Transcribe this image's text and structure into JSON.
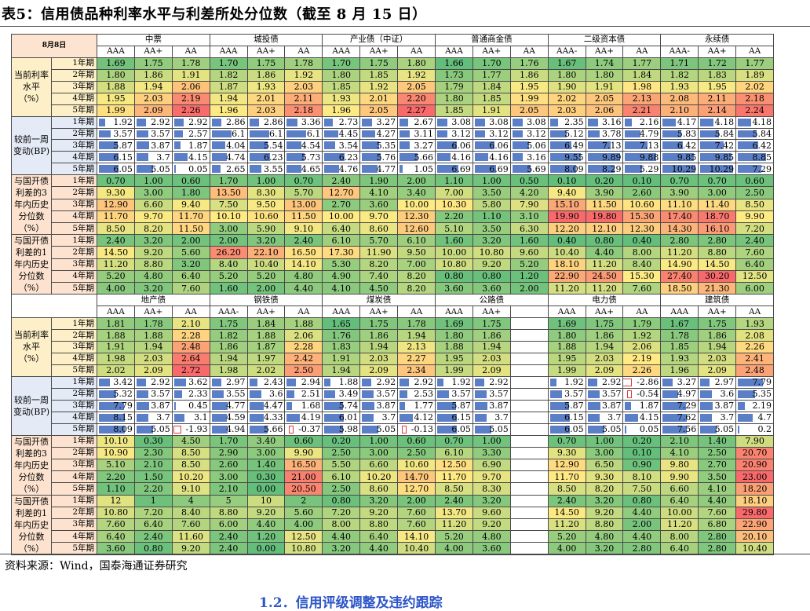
{
  "title": "表5：信用债品种利率水平与利差所处分位数（截至 8 月 15 日）",
  "source": "资料来源：Wind，国泰海通证券研究",
  "next_heading": "1.2．信用评级调整及违约跟踪",
  "corner": "8月8日",
  "tenors": [
    "1年期",
    "2年期",
    "3年期",
    "4年期",
    "5年期"
  ],
  "blocks": [
    {
      "type": "label",
      "lines": [
        "当前利率",
        "水平",
        "（%）"
      ]
    },
    {
      "type": "label",
      "lines": [
        "较前一周",
        "变动(BP)"
      ]
    },
    {
      "type": "label",
      "lines": [
        "与国开债",
        "利差的3",
        "年内历史",
        "分位数",
        "（%）"
      ]
    },
    {
      "type": "label",
      "lines": [
        "与国开债",
        "利差的1",
        "年内历史",
        "分位数",
        "（%）"
      ]
    }
  ],
  "panels": [
    {
      "groups": [
        {
          "name": "中票",
          "cols": [
            "AAA",
            "AA+",
            "AA"
          ]
        },
        {
          "name": "城投债",
          "cols": [
            "AAA",
            "AA+",
            "AA"
          ]
        },
        {
          "name": "产业债（中证）",
          "cols": [
            "AAA",
            "AA+",
            "AA"
          ]
        },
        {
          "name": "普通商金债",
          "cols": [
            "AAA",
            "AA+",
            "AA"
          ]
        },
        {
          "name": "二级资本债",
          "cols": [
            "AAA-",
            "AA+",
            "AA"
          ]
        },
        {
          "name": "永续债",
          "cols": [
            "AAA-",
            "AA+",
            "AA"
          ]
        }
      ],
      "blocks": [
        [
          [
            "1.69",
            "1.75",
            "1.78",
            "1.70",
            "1.75",
            "1.78",
            "1.70",
            "1.75",
            "1.80",
            "1.66",
            "1.70",
            "1.76",
            "1.67",
            "1.74",
            "1.77",
            "1.71",
            "1.72",
            "1.77"
          ],
          [
            "1.80",
            "1.86",
            "1.91",
            "1.82",
            "1.86",
            "1.92",
            "1.80",
            "1.85",
            "1.92",
            "1.73",
            "1.77",
            "1.86",
            "1.80",
            "1.80",
            "1.84",
            "1.82",
            "1.83",
            "1.89"
          ],
          [
            "1.88",
            "1.94",
            "2.06",
            "1.87",
            "1.93",
            "2.03",
            "1.85",
            "1.92",
            "2.05",
            "1.79",
            "1.84",
            "1.95",
            "1.90",
            "1.91",
            "1.98",
            "1.93",
            "1.95",
            "2.02"
          ],
          [
            "1.95",
            "2.03",
            "2.19",
            "1.94",
            "2.01",
            "2.11",
            "1.93",
            "2.01",
            "2.20",
            "1.80",
            "1.85",
            "1.99",
            "2.02",
            "2.05",
            "2.13",
            "2.08",
            "2.11",
            "2.18"
          ],
          [
            "1.99",
            "2.09",
            "2.26",
            "1.96",
            "2.03",
            "2.18",
            "1.96",
            "2.05",
            "2.27",
            "1.85",
            "1.91",
            "2.05",
            "2.03",
            "2.06",
            "2.21",
            "2.10",
            "2.14",
            "2.24"
          ]
        ],
        [
          [
            "1.92",
            "2.92",
            "2.92",
            "2.86",
            "2.86",
            "3.36",
            "2.73",
            "3.27",
            "2.67",
            "3.08",
            "3.08",
            "3.08",
            "2.35",
            "3.16",
            "2.16",
            "4.17",
            "4.18",
            "4.18"
          ],
          [
            "3.57",
            "3.57",
            "2.57",
            "6.1",
            "6.1",
            "6.1",
            "4.45",
            "4.27",
            "3.11",
            "3.12",
            "3.12",
            "3.12",
            "5.12",
            "3.78",
            "4.79",
            "5.83",
            "5.84",
            "5.84"
          ],
          [
            "5.87",
            "3.87",
            "1.87",
            "4.04",
            "5.54",
            "4.54",
            "3.54",
            "5.35",
            "3.27",
            "6.06",
            "6.06",
            "5.06",
            "6.49",
            "7.13",
            "7.13",
            "6.42",
            "7.42",
            "6.42"
          ],
          [
            "6.15",
            "3.7",
            "4.15",
            "4.74",
            "6.23",
            "5.73",
            "6.23",
            "5.76",
            "5.66",
            "4.16",
            "4.16",
            "3.16",
            "9.55",
            "9.89",
            "9.88",
            "9.85",
            "9.85",
            "8.85"
          ],
          [
            "6.05",
            "5.05",
            "0.05",
            "2.65",
            "3.55",
            "4.65",
            "4.76",
            "4.77",
            "1.05",
            "6.69",
            "6.69",
            "5.69",
            "8.09",
            "8.29",
            "5.29",
            "10.29",
            "10.29",
            "7.29"
          ]
        ],
        [
          [
            "0.70",
            "1.00",
            "0.60",
            "1.70",
            "1.00",
            "0.70",
            "2.40",
            "1.90",
            "2.00",
            "1.10",
            "1.00",
            "0.50",
            "0.10",
            "0.20",
            "0.10",
            "0.70",
            "0.70",
            "0.60"
          ],
          [
            "9.30",
            "3.00",
            "1.80",
            "13.50",
            "8.30",
            "5.70",
            "12.70",
            "4.10",
            "3.40",
            "7.00",
            "3.50",
            "4.20",
            "9.40",
            "3.90",
            "2.60",
            "3.90",
            "3.00",
            "2.50"
          ],
          [
            "12.90",
            "6.60",
            "9.40",
            "7.50",
            "9.50",
            "13.00",
            "2.70",
            "3.60",
            "10.00",
            "10.30",
            "5.80",
            "7.90",
            "15.10",
            "11.50",
            "10.60",
            "11.10",
            "11.40",
            "8.50"
          ],
          [
            "11.70",
            "9.70",
            "11.70",
            "10.10",
            "10.60",
            "11.50",
            "10.00",
            "9.70",
            "12.30",
            "2.20",
            "1.10",
            "3.10",
            "19.90",
            "19.80",
            "15.30",
            "17.40",
            "18.70",
            "9.90"
          ],
          [
            "8.50",
            "8.20",
            "11.50",
            "3.00",
            "5.90",
            "9.10",
            "6.40",
            "8.60",
            "12.60",
            "5.10",
            "3.50",
            "6.30",
            "12.20",
            "12.10",
            "12.30",
            "14.30",
            "16.10",
            "7.20"
          ]
        ],
        [
          [
            "2.40",
            "3.20",
            "2.00",
            "2.00",
            "3.20",
            "2.40",
            "6.10",
            "5.70",
            "6.10",
            "1.60",
            "3.20",
            "1.60",
            "0.40",
            "0.80",
            "0.40",
            "2.80",
            "2.80",
            "2.40"
          ],
          [
            "14.50",
            "9.20",
            "5.60",
            "26.20",
            "22.10",
            "16.50",
            "17.30",
            "11.90",
            "9.50",
            "10.00",
            "10.80",
            "9.60",
            "10.40",
            "4.40",
            "8.00",
            "11.20",
            "8.80",
            "7.60"
          ],
          [
            "11.20",
            "8.80",
            "3.20",
            "8.40",
            "10.40",
            "14.10",
            "5.30",
            "8.20",
            "7.00",
            "10.80",
            "9.20",
            "5.20",
            "18.10",
            "11.20",
            "8.40",
            "14.90",
            "14.50",
            "6.40"
          ],
          [
            "5.20",
            "4.80",
            "6.40",
            "5.20",
            "5.20",
            "4.80",
            "4.90",
            "7.40",
            "8.20",
            "0.80",
            "0.80",
            "1.20",
            "22.90",
            "24.50",
            "15.30",
            "27.40",
            "30.20",
            "12.50"
          ],
          [
            "4.00",
            "3.20",
            "7.60",
            "1.60",
            "2.00",
            "4.40",
            "4.10",
            "4.50",
            "8.20",
            "3.60",
            "3.60",
            "2.00",
            "11.20",
            "11.20",
            "7.60",
            "18.50",
            "21.30",
            "6.00"
          ]
        ]
      ]
    },
    {
      "groups": [
        {
          "name": "地产债",
          "cols": [
            "AAA",
            "AA+",
            "AA"
          ]
        },
        {
          "name": "钢铁债",
          "cols": [
            "AAA-",
            "AA+",
            "AA"
          ]
        },
        {
          "name": "煤炭债",
          "cols": [
            "AAA",
            "AA+",
            "AA"
          ]
        },
        {
          "name": "公路债",
          "cols": [
            "AAA",
            "AA+",
            ""
          ]
        },
        {
          "name": "电力债",
          "cols": [
            "AAA",
            "AA+",
            "AA"
          ]
        },
        {
          "name": "建筑债",
          "cols": [
            "AAA",
            "AA+",
            "AA"
          ]
        }
      ],
      "blocks": [
        [
          [
            "1.81",
            "1.78",
            "2.10",
            "1.75",
            "1.84",
            "1.88",
            "1.65",
            "1.75",
            "1.78",
            "1.69",
            "1.75",
            "",
            "1.69",
            "1.75",
            "1.79",
            "1.67",
            "1.75",
            "1.93"
          ],
          [
            "1.88",
            "1.88",
            "2.28",
            "1.82",
            "1.88",
            "2.06",
            "1.76",
            "1.86",
            "1.94",
            "1.80",
            "1.86",
            "",
            "1.80",
            "1.86",
            "1.92",
            "1.78",
            "1.86",
            "2.08"
          ],
          [
            "1.91",
            "1.94",
            "2.48",
            "1.86",
            "1.87",
            "2.28",
            "1.83",
            "1.94",
            "2.13",
            "1.88",
            "1.94",
            "",
            "1.88",
            "1.94",
            "2.06",
            "1.85",
            "1.94",
            "2.26"
          ],
          [
            "1.98",
            "2.03",
            "2.64",
            "1.94",
            "1.97",
            "2.42",
            "1.91",
            "2.03",
            "2.27",
            "1.95",
            "2.03",
            "",
            "1.95",
            "2.03",
            "2.19",
            "1.93",
            "2.03",
            "2.41"
          ],
          [
            "2.02",
            "2.09",
            "2.72",
            "1.98",
            "2.02",
            "2.50",
            "1.94",
            "2.09",
            "2.34",
            "1.99",
            "2.09",
            "",
            "1.99",
            "2.09",
            "2.26",
            "1.96",
            "2.09",
            "2.48"
          ]
        ],
        [
          [
            "3.42",
            "2.92",
            "3.62",
            "2.97",
            "2.43",
            "2.94",
            "1.88",
            "2.92",
            "2.92",
            "1.92",
            "2.92",
            "",
            "1.92",
            "2.92",
            "-2.86",
            "3.27",
            "2.97",
            "7.79"
          ],
          [
            "5.32",
            "3.57",
            "2.33",
            "3.55",
            "3.6",
            "2.51",
            "3.49",
            "3.57",
            "2.53",
            "3.57",
            "3.57",
            "",
            "3.57",
            "3.57",
            "-0.54",
            "4.97",
            "3.6",
            "5.35"
          ],
          [
            "7.79",
            "3.87",
            "0.45",
            "4.77",
            "4.47",
            "1.68",
            "5.74",
            "3.87",
            "1.77",
            "5.87",
            "3.87",
            "",
            "5.87",
            "3.87",
            "1.87",
            "7.29",
            "3.87",
            "2.19"
          ],
          [
            "8.15",
            "3.7",
            "3.1",
            "4.59",
            "4.33",
            "4.19",
            "6.01",
            "3.7",
            "4.12",
            "6.15",
            "3.7",
            "",
            "6.15",
            "3.7",
            "4.15",
            "7.62",
            "3.7",
            "4.7"
          ],
          [
            "8.09",
            "5.05",
            "-1.93",
            "4.94",
            "5.66",
            "-0.37",
            "5.98",
            "5.05",
            "-0.13",
            "6.05",
            "5.05",
            "",
            "6.05",
            "5.05",
            "0.05",
            "7.56",
            "5.05",
            "0.2"
          ]
        ],
        [
          [
            "10.10",
            "0.30",
            "4.50",
            "1.70",
            "3.40",
            "0.60",
            "0.20",
            "1.00",
            "0.60",
            "0.70",
            "1.00",
            "",
            "0.70",
            "1.00",
            "0.20",
            "2.10",
            "1.40",
            "7.90"
          ],
          [
            "10.90",
            "2.30",
            "8.50",
            "2.90",
            "3.00",
            "9.90",
            "2.50",
            "3.00",
            "2.50",
            "6.10",
            "3.30",
            "",
            "9.30",
            "3.00",
            "0.10",
            "4.10",
            "2.50",
            "20.70"
          ],
          [
            "5.10",
            "2.10",
            "8.50",
            "2.60",
            "1.40",
            "16.50",
            "5.50",
            "6.60",
            "10.60",
            "12.50",
            "6.90",
            "",
            "12.90",
            "6.50",
            "0.90",
            "9.80",
            "2.70",
            "20.90"
          ],
          [
            "2.20",
            "1.50",
            "10.20",
            "3.00",
            "0.30",
            "21.00",
            "6.10",
            "10.20",
            "14.70",
            "11.70",
            "9.70",
            "",
            "11.70",
            "9.30",
            "8.10",
            "9.90",
            "3.50",
            "23.00"
          ],
          [
            "1.10",
            "2.20",
            "9.10",
            "2.10",
            "0.00",
            "20.50",
            "2.50",
            "8.60",
            "12.70",
            "8.50",
            "8.30",
            "",
            "8.50",
            "8.20",
            "7.50",
            "6.60",
            "4.10",
            "18.20"
          ]
        ],
        [
          [
            "12",
            "1",
            "4",
            "5",
            "10",
            "2",
            "0.80",
            "3.20",
            "2.00",
            "2.40",
            "3.20",
            "",
            "2.40",
            "3.20",
            "0.80",
            "6.40",
            "4.40",
            "18.10"
          ],
          [
            "10.80",
            "7.20",
            "8.40",
            "8.80",
            "9.20",
            "5.60",
            "7.20",
            "9.20",
            "7.60",
            "13.70",
            "9.60",
            "",
            "14.50",
            "9.20",
            "4.40",
            "10.00",
            "7.60",
            "29.80"
          ],
          [
            "7.60",
            "6.40",
            "7.60",
            "6.00",
            "4.40",
            "4.00",
            "8.00",
            "8.80",
            "7.60",
            "11.20",
            "9.20",
            "",
            "11.20",
            "8.80",
            "2.00",
            "11.20",
            "6.80",
            "22.90"
          ],
          [
            "6.40",
            "2.40",
            "11.60",
            "2.40",
            "1.20",
            "12.50",
            "4.40",
            "6.40",
            "14.10",
            "5.20",
            "4.80",
            "",
            "5.20",
            "4.80",
            "4.40",
            "8.00",
            "2.80",
            "20.10"
          ],
          [
            "3.60",
            "0.80",
            "9.20",
            "2.40",
            "0.00",
            "10.80",
            "3.20",
            "4.40",
            "10.40",
            "4.00",
            "3.60",
            "",
            "4.00",
            "3.20",
            "2.80",
            "6.40",
            "2.80",
            "10.40"
          ]
        ]
      ]
    }
  ]
}
